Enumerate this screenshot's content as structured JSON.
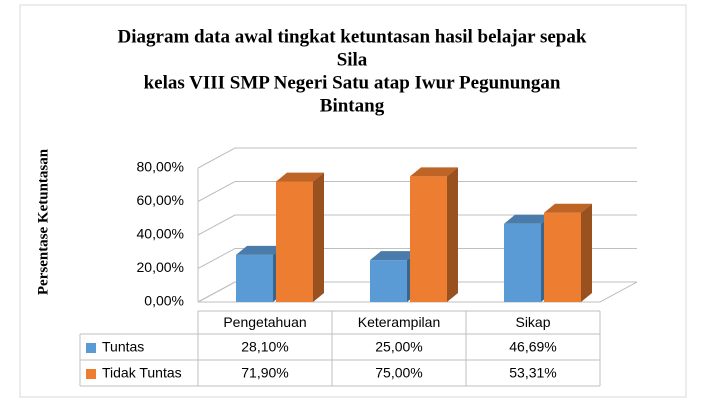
{
  "chart_data": {
    "type": "bar3d",
    "title": [
      "Diagram data awal tingkat ketuntasan hasil belajar sepak",
      "Sila",
      "kelas VIII SMP Negeri Satu atap Iwur Pegunungan",
      "Bintang"
    ],
    "y_label": "Persentase Ketuntasan",
    "categories": [
      "Pengetahuan",
      "Keterampilan",
      "Sikap"
    ],
    "series": [
      {
        "name": "Tuntas",
        "color": "#5b9bd5",
        "values": [
          28.1,
          25.0,
          46.69
        ],
        "value_labels": [
          "28,10%",
          "25,00%",
          "46,69%"
        ]
      },
      {
        "name": "Tidak Tuntas",
        "color": "#ed7d31",
        "values": [
          71.9,
          75.0,
          53.31
        ],
        "value_labels": [
          "71,90%",
          "75,00%",
          "53,31%"
        ]
      }
    ],
    "ylim": [
      0,
      80
    ],
    "yticks": [
      {
        "value": 0,
        "label": "0,00%"
      },
      {
        "value": 20,
        "label": "20,00%"
      },
      {
        "value": 40,
        "label": "40,00%"
      },
      {
        "value": 60,
        "label": "60,00%"
      },
      {
        "value": 80,
        "label": "80,00%"
      }
    ],
    "grid": true,
    "data_table": true
  }
}
